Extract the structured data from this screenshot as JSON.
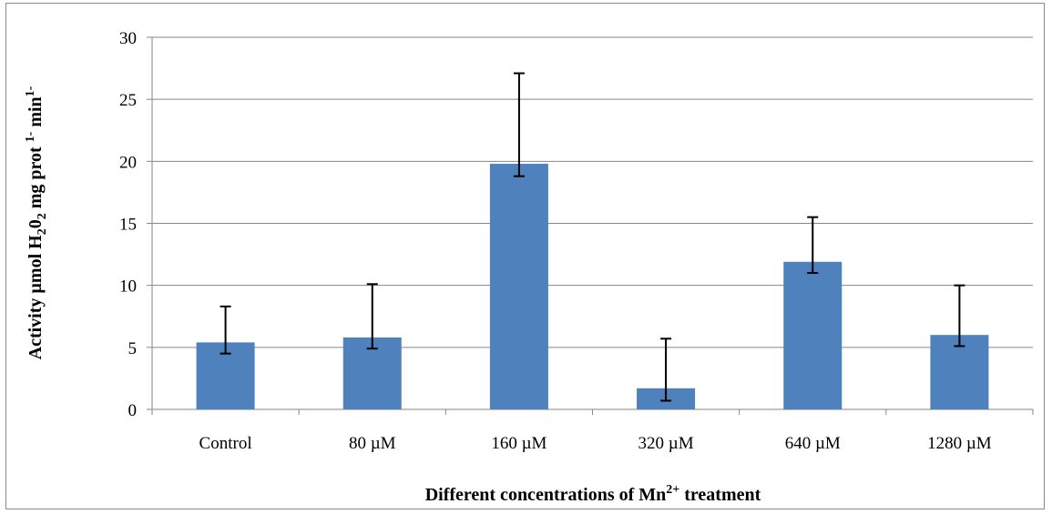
{
  "chart_data": {
    "type": "bar",
    "categories": [
      "Control",
      "80 µM",
      "160 µM",
      "320 µM",
      "640 µM",
      "1280 µM"
    ],
    "values": [
      5.4,
      5.8,
      19.8,
      1.7,
      11.9,
      6.0
    ],
    "error_upper": [
      8.3,
      10.1,
      27.1,
      5.7,
      15.5,
      10.0
    ],
    "error_lower": [
      4.5,
      4.9,
      18.8,
      0.7,
      11.0,
      5.1
    ],
    "yticks": [
      "0",
      "5",
      "10",
      "15",
      "20",
      "25",
      "30"
    ],
    "ylim": [
      0,
      30
    ],
    "grid": true,
    "legend": "none",
    "bar_color": "#4F81BD",
    "xlabel_parts": {
      "text1": "Different concentrations of Mn",
      "sup": "2+",
      "text2": " treatment"
    },
    "ylabel_parts": {
      "t1": "Activity µmol H",
      "s1": "2",
      "t2": "0",
      "s2": "2",
      "t3": " mg prot ",
      "p1": "1-",
      "t4": " min",
      "p2": "1-"
    }
  }
}
